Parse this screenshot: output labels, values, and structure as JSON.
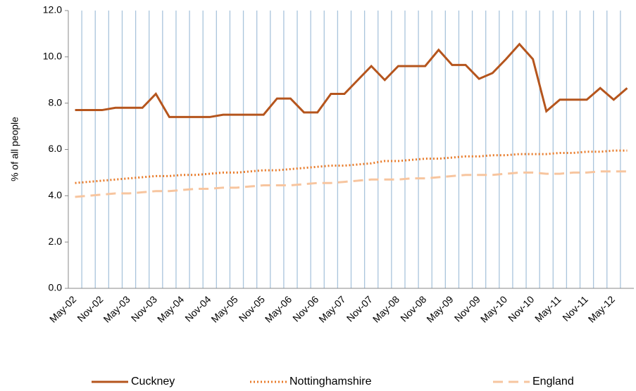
{
  "chart_data": {
    "type": "line",
    "ylabel": "% of all people",
    "categories": [
      "May-02",
      null,
      "Nov-02",
      null,
      "May-03",
      null,
      "Nov-03",
      null,
      "May-04",
      null,
      "Nov-04",
      null,
      "May-05",
      null,
      "Nov-05",
      null,
      "May-06",
      null,
      "Nov-06",
      null,
      "May-07",
      null,
      "Nov-07",
      null,
      "May-08",
      null,
      "Nov-08",
      null,
      "May-09",
      null,
      "Nov-09",
      null,
      "May-10",
      null,
      "Nov-10",
      null,
      "May-11",
      null,
      "Nov-11",
      null,
      "May-12",
      null
    ],
    "series": [
      {
        "name": "Cuckney",
        "color": "#b5551d",
        "dash": "solid",
        "values": [
          7.7,
          7.7,
          7.7,
          7.8,
          7.8,
          7.8,
          8.4,
          7.4,
          7.4,
          7.4,
          7.4,
          7.5,
          7.5,
          7.5,
          7.5,
          8.2,
          8.2,
          7.6,
          7.6,
          8.4,
          8.4,
          9.0,
          9.6,
          9.0,
          9.6,
          9.6,
          9.6,
          10.3,
          9.65,
          9.65,
          9.05,
          9.3,
          9.9,
          10.55,
          9.9,
          7.65,
          8.15,
          8.15,
          8.15,
          8.65,
          8.15,
          8.65
        ]
      },
      {
        "name": "Nottinghamshire",
        "color": "#e87b2a",
        "dash": "dotted",
        "values": [
          4.55,
          4.6,
          4.65,
          4.7,
          4.75,
          4.8,
          4.85,
          4.85,
          4.9,
          4.9,
          4.95,
          5.0,
          5.0,
          5.05,
          5.1,
          5.1,
          5.15,
          5.2,
          5.25,
          5.3,
          5.3,
          5.35,
          5.4,
          5.5,
          5.5,
          5.55,
          5.6,
          5.6,
          5.65,
          5.7,
          5.7,
          5.75,
          5.75,
          5.8,
          5.8,
          5.8,
          5.85,
          5.85,
          5.9,
          5.9,
          5.95,
          5.95
        ]
      },
      {
        "name": "England",
        "color": "#f7c59f",
        "dash": "dashed",
        "values": [
          3.95,
          4.0,
          4.05,
          4.1,
          4.1,
          4.15,
          4.2,
          4.2,
          4.25,
          4.3,
          4.3,
          4.35,
          4.35,
          4.4,
          4.45,
          4.45,
          4.45,
          4.5,
          4.55,
          4.55,
          4.6,
          4.65,
          4.7,
          4.7,
          4.7,
          4.75,
          4.75,
          4.8,
          4.85,
          4.9,
          4.9,
          4.9,
          4.95,
          5.0,
          5.0,
          4.95,
          4.95,
          5.0,
          5.0,
          5.05,
          5.05,
          5.05
        ]
      }
    ],
    "ylim": [
      0,
      12
    ],
    "yticks": [
      {
        "value": 0,
        "label": "0.0"
      },
      {
        "value": 2,
        "label": "2.0"
      },
      {
        "value": 4,
        "label": "4.0"
      },
      {
        "value": 6,
        "label": "6.0"
      },
      {
        "value": 8,
        "label": "8.0"
      },
      {
        "value": 10,
        "label": "10.0"
      },
      {
        "value": 12,
        "label": "12.0"
      }
    ],
    "grid_color": "#a9c4dc",
    "legend": "bottom"
  }
}
